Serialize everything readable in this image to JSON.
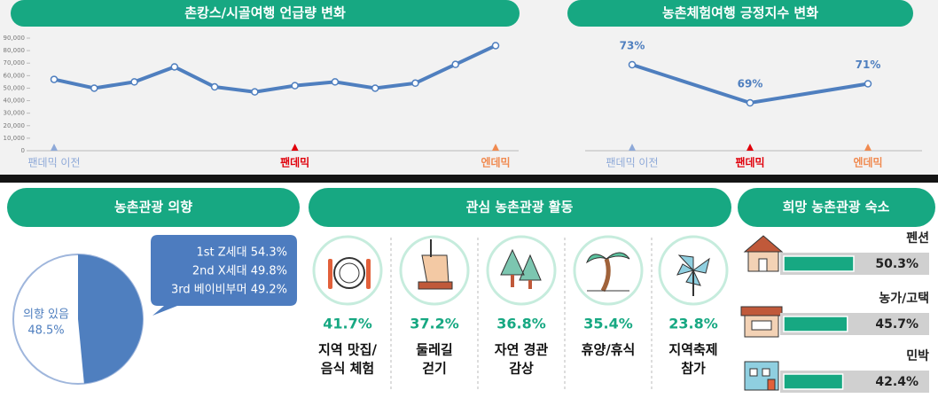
{
  "chart_data": [
    {
      "type": "line",
      "title": "촌캉스/시골여행 언급량 변화",
      "categories": [
        "팬데믹 이전",
        null,
        null,
        null,
        null,
        null,
        "팬데믹",
        null,
        null,
        null,
        null,
        "엔데믹"
      ],
      "category_colors": [
        "#8ea9d8",
        null,
        null,
        null,
        null,
        null,
        "#e0000b",
        null,
        null,
        null,
        null,
        "#f08a50"
      ],
      "series": [
        {
          "color": "#4f7fbf",
          "values": [
            57000,
            50000,
            55000,
            67000,
            51000,
            47000,
            52000,
            55000,
            50000,
            54000,
            69000,
            84000
          ]
        }
      ],
      "ylim": [
        0,
        90000
      ],
      "yticks": [
        0,
        {
          "value": 10000,
          "label": "10,000"
        },
        {
          "value": 20000,
          "label": "20,000"
        },
        {
          "value": 30000,
          "label": "30,000"
        },
        {
          "value": 40000,
          "label": "40,000"
        },
        {
          "value": 50000,
          "label": "50,000"
        },
        {
          "value": 60000,
          "label": "60,000"
        },
        {
          "value": 70000,
          "label": "70,000"
        },
        {
          "value": 80000,
          "label": "80,000"
        },
        {
          "value": 90000,
          "label": "90,000"
        }
      ]
    },
    {
      "type": "line",
      "title": "농촌체험여행 긍정지수 변화",
      "categories": [
        "팬데믹 이전",
        "팬데믹",
        "엔데믹"
      ],
      "category_colors": [
        "#8ea9d8",
        "#e0000b",
        "#f08a50"
      ],
      "series": [
        {
          "color": "#4f7fbf",
          "values": [
            73,
            69,
            71
          ],
          "value_labels": [
            "73%",
            "69%",
            "71%"
          ]
        }
      ]
    },
    {
      "type": "pie",
      "title": "농촌관광 의향",
      "categories": [
        "의향 있음"
      ],
      "values": [
        48.5
      ],
      "value_labels": [
        "48.5%"
      ],
      "color": "#4f7fbf",
      "annotations": [
        "1st Z세대 54.3%",
        "2nd X세대 49.8%",
        "3rd 베이비부머 49.2%"
      ]
    },
    {
      "type": "hbar",
      "title": "희망 농촌관광 숙소",
      "categories": [
        "펜션",
        "농가/고택",
        "민박"
      ],
      "values": [
        50.3,
        45.7,
        42.4
      ],
      "value_labels": [
        "50.3%",
        "45.7%",
        "42.4%"
      ],
      "color": "#17a882",
      "xlim": [
        0,
        100
      ]
    }
  ],
  "activities": {
    "title": "관심 농촌관광 활동",
    "items": [
      {
        "value": "41.7%",
        "label": [
          "지역 맛집/",
          "음식 체험"
        ]
      },
      {
        "value": "37.2%",
        "label": [
          "둘레길",
          "걷기"
        ]
      },
      {
        "value": "36.8%",
        "label": [
          "자연 경관",
          "감상"
        ]
      },
      {
        "value": "35.4%",
        "label": [
          "휴양/휴식"
        ]
      },
      {
        "value": "23.8%",
        "label": [
          "지역축제",
          "참가"
        ]
      }
    ]
  }
}
